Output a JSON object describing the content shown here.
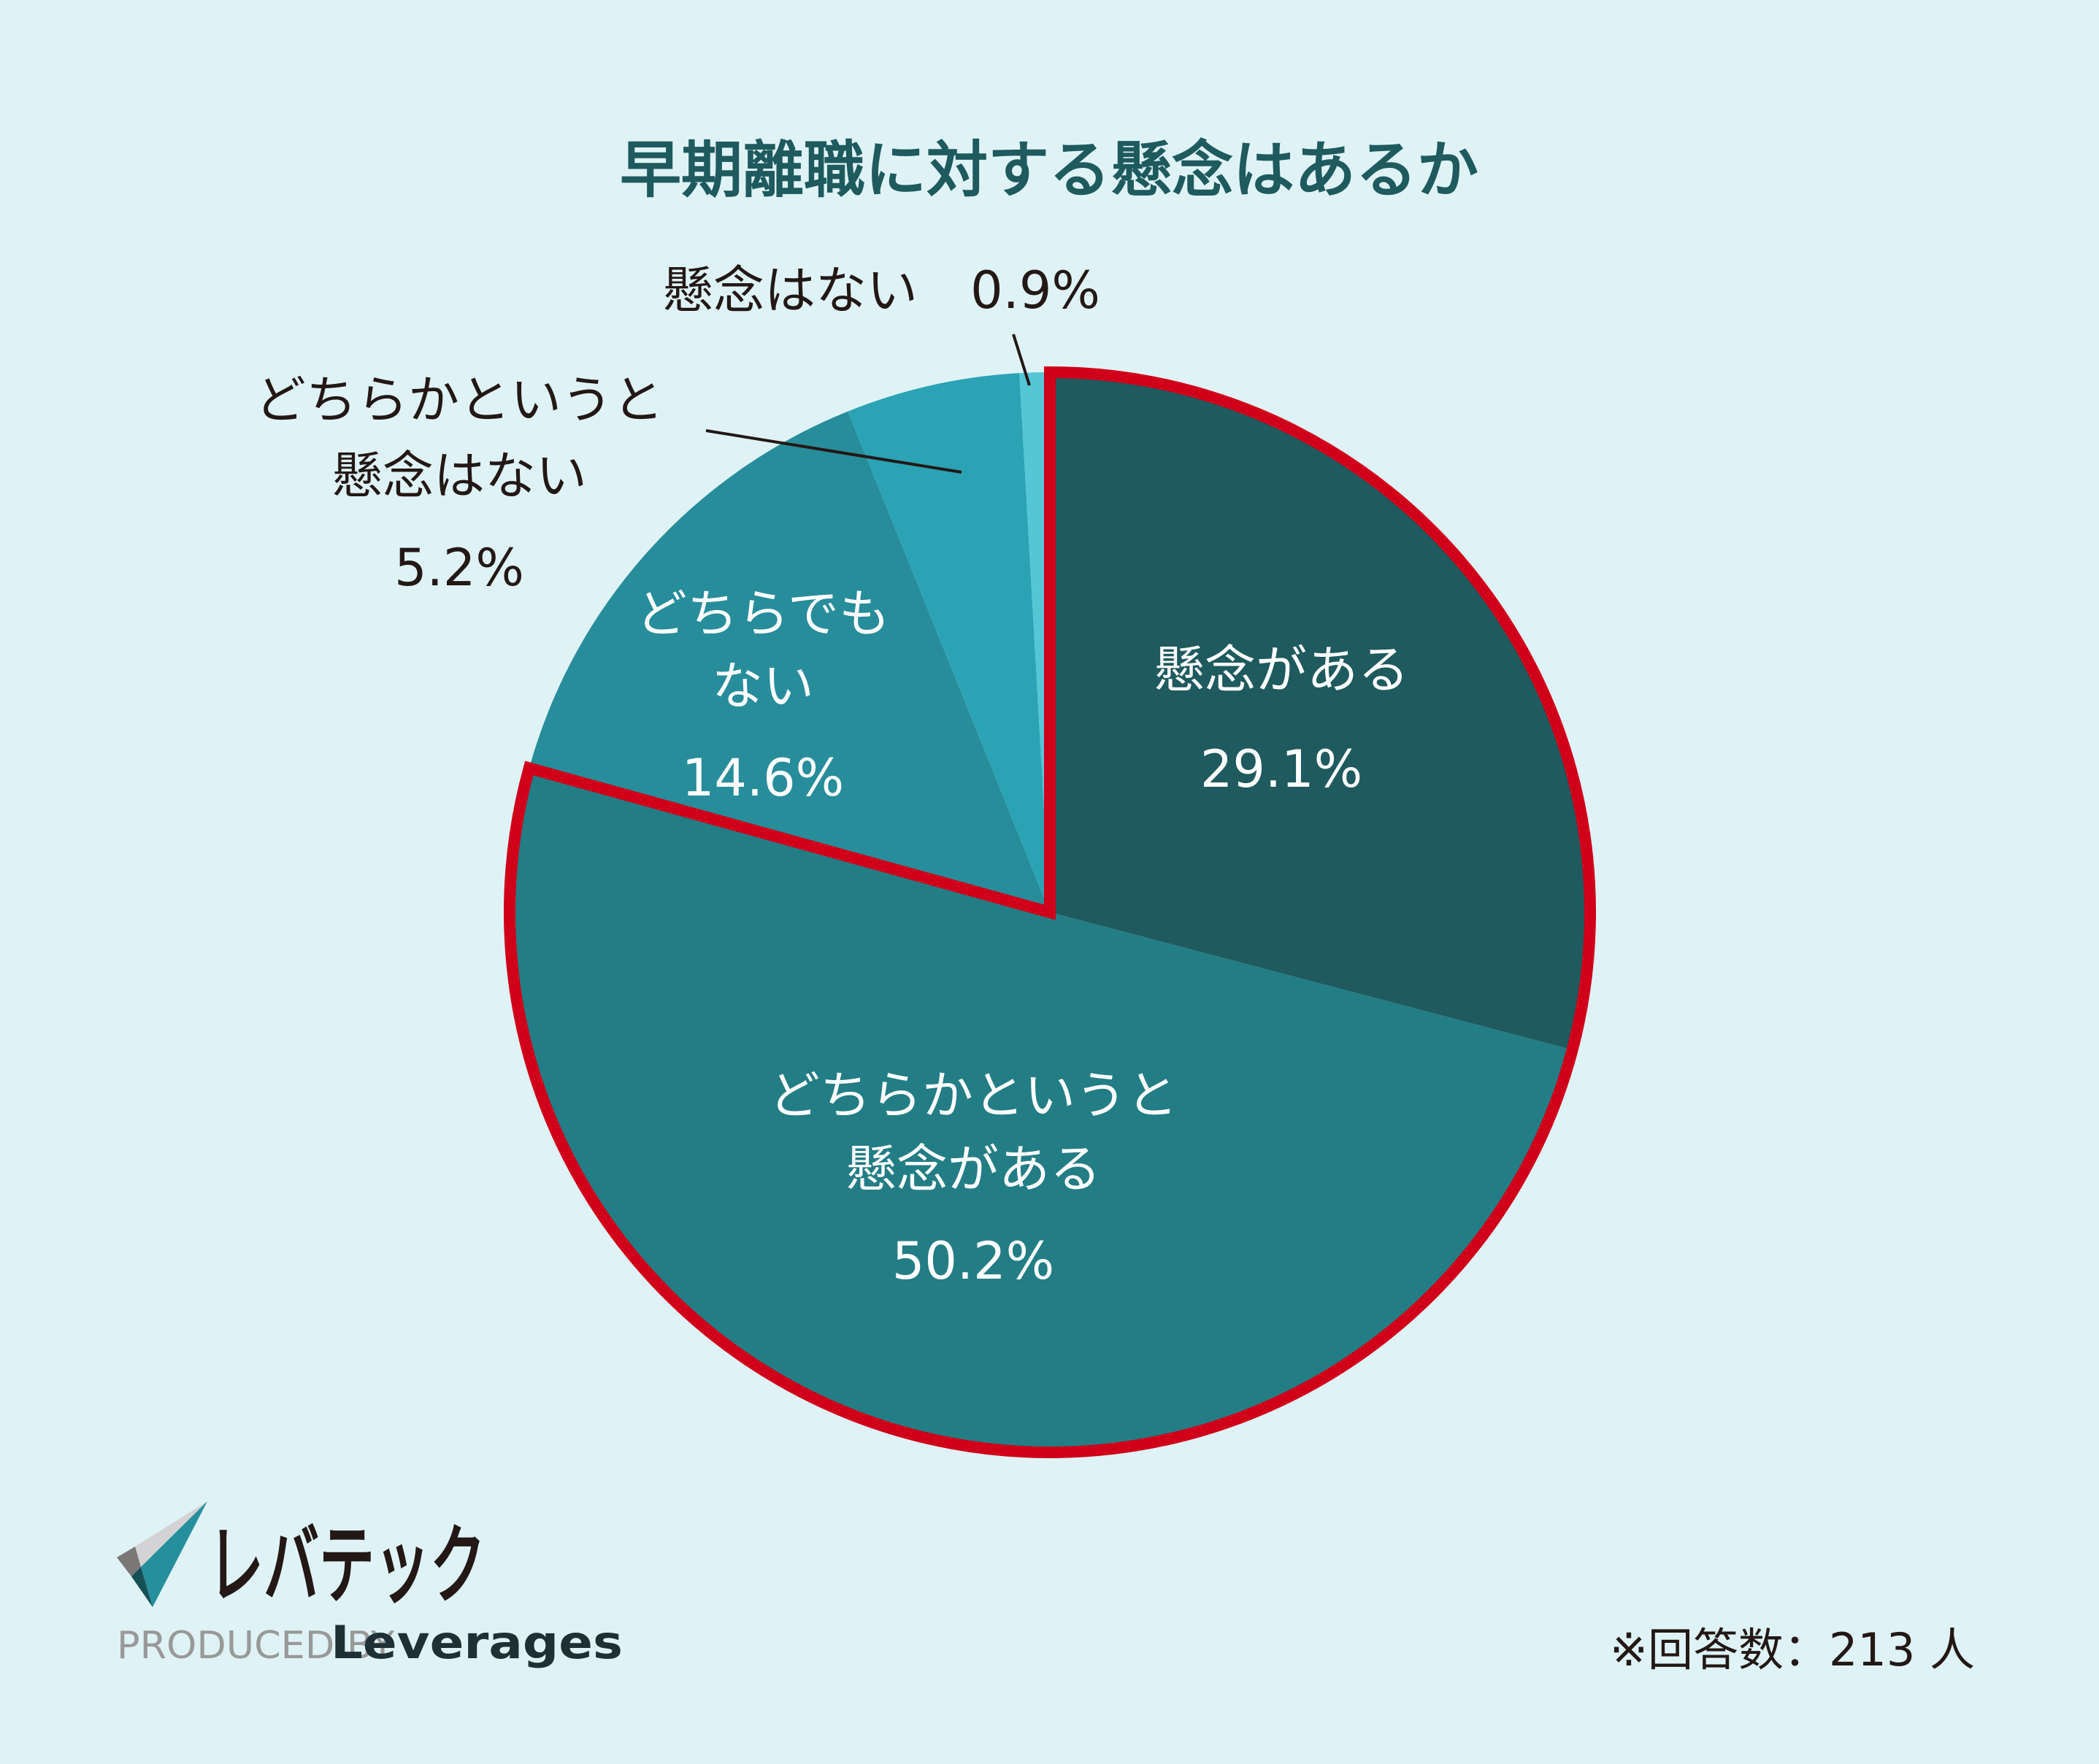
{
  "chart_data": {
    "type": "pie",
    "title": "早期離職に対する懸念はあるか",
    "start": "top",
    "direction": "clockwise",
    "slices": [
      {
        "label_lines": [
          "懸念がある"
        ],
        "value": 29.1,
        "value_label": "29.1%",
        "color": "#1e5a5e",
        "highlighted": true
      },
      {
        "label_lines": [
          "どちらかというと",
          "懸念がある"
        ],
        "value": 50.2,
        "value_label": "50.2%",
        "color": "#237d85",
        "highlighted": true
      },
      {
        "label_lines": [
          "どちらでも",
          "ない"
        ],
        "value": 14.6,
        "value_label": "14.6%",
        "color": "#278d9b",
        "highlighted": false
      },
      {
        "label_lines": [
          "どちらかというと",
          "懸念はない"
        ],
        "value": 5.2,
        "value_label": "5.2%",
        "color": "#2ba3b5",
        "highlighted": false
      },
      {
        "label_lines": [
          "懸念はない"
        ],
        "value": 0.9,
        "value_label": "0.9%",
        "color": "#55c6d6",
        "highlighted": false
      }
    ],
    "highlight_color": "#d0001a",
    "footnote": "※回答数：213 人"
  },
  "logo": {
    "name": "レバテック",
    "produced_by": "PRODUCED BY",
    "company": "Leverages"
  },
  "colors": {
    "background": "#dff3f6",
    "title": "#1e5a5e",
    "text_dark": "#231815"
  }
}
